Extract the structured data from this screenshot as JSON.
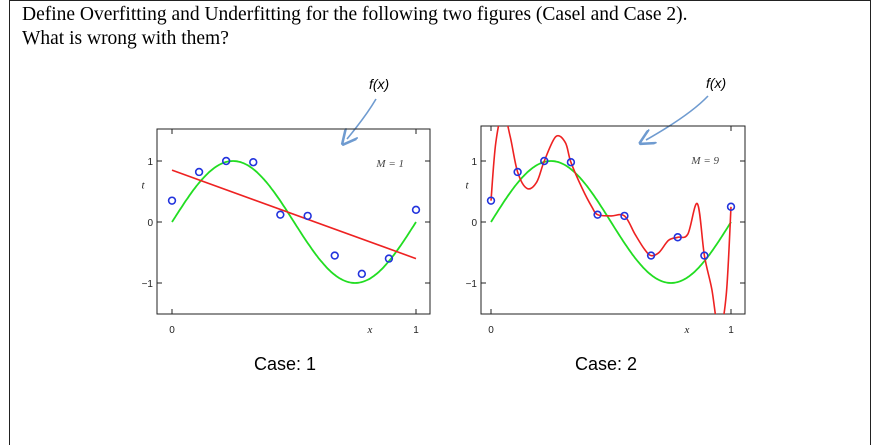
{
  "question": {
    "line1": "Define Overfitting and Underfitting for the following two figures (Casel and Case 2).",
    "line2": "What is wrong with them?"
  },
  "charts": [
    {
      "fx_label": "f(x)",
      "case_label": "Case: 1"
    },
    {
      "fx_label": "f(x)",
      "case_label": "Case: 2"
    }
  ],
  "colors": {
    "true_curve": "#22dd22",
    "fit_curve": "#ee2222",
    "points": "#2233dd"
  },
  "chart_data": [
    {
      "type": "scatter",
      "annotation": "M = 1",
      "xlim": [
        0,
        1
      ],
      "ylim": [
        -1.5,
        1.5
      ],
      "x_ticks": [
        "0",
        "1"
      ],
      "y_ticks": [
        "1",
        "0",
        "−1"
      ],
      "xlabel": "x",
      "ylabel": "t",
      "points": {
        "x": [
          0.0,
          0.111,
          0.222,
          0.333,
          0.444,
          0.556,
          0.667,
          0.778,
          0.889,
          1.0
        ],
        "y": [
          0.35,
          0.82,
          1.0,
          0.98,
          0.12,
          0.1,
          -0.55,
          -0.85,
          -0.6,
          0.2
        ]
      },
      "series": [
        {
          "kind": "true_function",
          "x": [
            0.0,
            1.0
          ],
          "function": "sin(2*pi*x)"
        },
        {
          "kind": "fit",
          "x": [
            0.0,
            1.0
          ],
          "y": [
            0.85,
            -0.6
          ]
        }
      ]
    },
    {
      "type": "scatter",
      "annotation": "M = 9",
      "xlim": [
        0,
        1
      ],
      "ylim": [
        -1.5,
        1.5
      ],
      "x_ticks": [
        "0",
        "1"
      ],
      "y_ticks": [
        "1",
        "0",
        "−1"
      ],
      "xlabel": "x",
      "ylabel": "t",
      "points": {
        "x": [
          0.0,
          0.111,
          0.222,
          0.333,
          0.444,
          0.556,
          0.667,
          0.778,
          0.889,
          1.0
        ],
        "y": [
          0.35,
          0.82,
          1.0,
          0.98,
          0.12,
          0.1,
          -0.55,
          -0.25,
          -0.55,
          0.25
        ]
      },
      "series": [
        {
          "kind": "true_function",
          "x": [
            0.0,
            1.0
          ],
          "function": "sin(2*pi*x)"
        },
        {
          "kind": "fit",
          "x": [
            0.0,
            0.02,
            0.05,
            0.08,
            0.111,
            0.15,
            0.19,
            0.222,
            0.27,
            0.31,
            0.333,
            0.38,
            0.42,
            0.444,
            0.5,
            0.556,
            0.6,
            0.64,
            0.667,
            0.7,
            0.74,
            0.778,
            0.82,
            0.86,
            0.889,
            0.92,
            0.95,
            0.98,
            1.0
          ],
          "y": [
            0.35,
            1.3,
            1.8,
            1.4,
            0.82,
            0.55,
            0.65,
            1.0,
            1.4,
            1.3,
            0.98,
            0.55,
            0.25,
            0.12,
            0.1,
            0.1,
            -0.2,
            -0.45,
            -0.55,
            -0.5,
            -0.3,
            -0.25,
            -0.2,
            0.3,
            -0.55,
            -1.1,
            -1.8,
            -1.2,
            0.25
          ]
        }
      ]
    }
  ]
}
